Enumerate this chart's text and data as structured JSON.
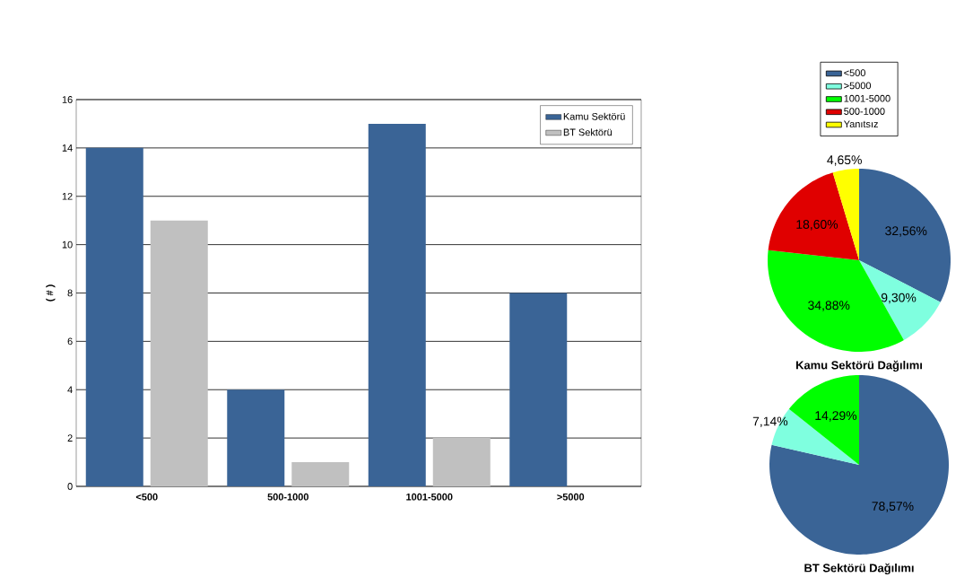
{
  "chart_data": [
    {
      "type": "bar",
      "categories": [
        "<500",
        "500-1000",
        "1001-5000",
        ">5000"
      ],
      "series": [
        {
          "name": "Kamu Sektörü",
          "color": "#3a6496",
          "values": [
            14,
            4,
            15,
            8
          ]
        },
        {
          "name": "BT Sektörü",
          "color": "#c0c0c0",
          "values": [
            11,
            1,
            2,
            0
          ]
        }
      ],
      "ylabel": "( # )",
      "ylim": [
        0,
        16
      ],
      "yticks": [
        0,
        2,
        4,
        6,
        8,
        10,
        12,
        14,
        16
      ],
      "grid": "y",
      "legend": "top right"
    },
    {
      "type": "pie",
      "title": "Kamu Sektörü Dağılımı",
      "categories": [
        "<500",
        ">5000",
        "1001-5000",
        "500-1000",
        "Yanıtsız"
      ],
      "values": [
        32.56,
        9.3,
        34.88,
        18.6,
        4.65
      ],
      "colors": [
        "#3a6496",
        "#7fffdf",
        "#00ff00",
        "#e00000",
        "#ffff00"
      ],
      "value_labels": [
        "32,56%",
        "9,30%",
        "34,88%",
        "18,60%",
        "4,65%"
      ],
      "legend": "top"
    },
    {
      "type": "pie",
      "title": "BT Sektörü Dağılımı",
      "categories": [
        null,
        null,
        null
      ],
      "values": [
        78.57,
        7.14,
        14.29
      ],
      "colors": [
        "#3a6496",
        "#7fffdf",
        "#00ff00"
      ],
      "value_labels": [
        "78,57%",
        "7,14%",
        "14,29%"
      ]
    }
  ]
}
